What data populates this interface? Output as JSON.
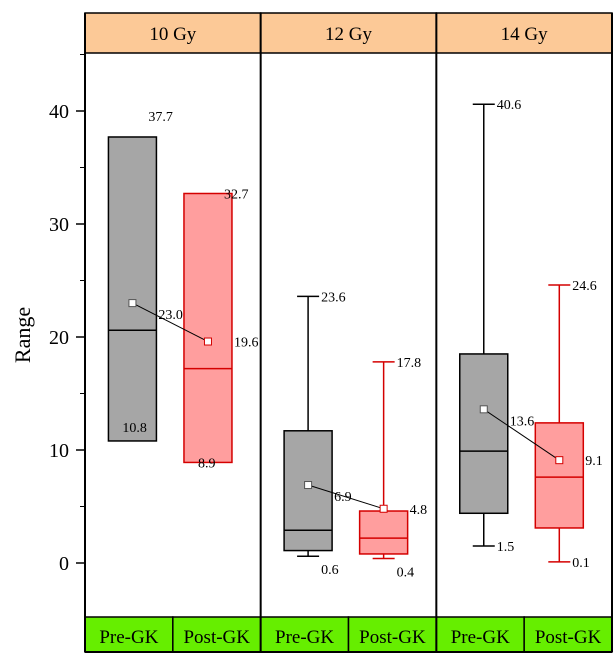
{
  "chart_data": {
    "type": "box",
    "ylabel": "Range",
    "ylim": [
      -5,
      46
    ],
    "yticks": [
      0,
      10,
      20,
      30,
      40
    ],
    "panels": [
      {
        "label": "10 Gy",
        "boxes": [
          {
            "group": "Pre-GK",
            "min": 10.8,
            "q1": 10.8,
            "median": 20.6,
            "q3": 37.7,
            "max": 37.7,
            "mean": 23.0,
            "labels": {
              "max": "37.7",
              "mean": "23.0",
              "min": "10.8"
            }
          },
          {
            "group": "Post-GK",
            "min": 8.9,
            "q1": 8.9,
            "median": 17.2,
            "q3": 32.7,
            "max": 32.7,
            "mean": 19.6,
            "labels": {
              "max": "32.7",
              "mean": "19.6",
              "min": "8.9"
            }
          }
        ]
      },
      {
        "label": "12 Gy",
        "boxes": [
          {
            "group": "Pre-GK",
            "min": 0.6,
            "q1": 1.1,
            "median": 2.9,
            "q3": 11.7,
            "max": 23.6,
            "mean": 6.9,
            "labels": {
              "max": "23.6",
              "mean": "6.9",
              "min": "0.6"
            }
          },
          {
            "group": "Post-GK",
            "min": 0.4,
            "q1": 0.8,
            "median": 2.2,
            "q3": 4.6,
            "max": 17.8,
            "mean": 4.8,
            "labels": {
              "max": "17.8",
              "mean": "4.8",
              "min": "0.4"
            }
          }
        ]
      },
      {
        "label": "14 Gy",
        "boxes": [
          {
            "group": "Pre-GK",
            "min": 1.5,
            "q1": 4.4,
            "median": 9.9,
            "q3": 18.5,
            "max": 40.6,
            "mean": 13.6,
            "labels": {
              "max": "40.6",
              "mean": "13.6",
              "min": "1.5"
            }
          },
          {
            "group": "Post-GK",
            "min": 0.1,
            "q1": 3.1,
            "median": 7.6,
            "q3": 12.4,
            "max": 24.6,
            "mean": 9.1,
            "labels": {
              "max": "24.6",
              "mean": "9.1",
              "min": "0.1"
            }
          }
        ]
      }
    ],
    "colors": {
      "pre_fill": "#a6a6a6",
      "pre_stroke": "#000000",
      "post_fill": "#ff9e9e",
      "post_stroke": "#d40000",
      "header_fill": "#fcc997",
      "footer_fill": "#66ee00",
      "mean_line": "#000000"
    }
  }
}
